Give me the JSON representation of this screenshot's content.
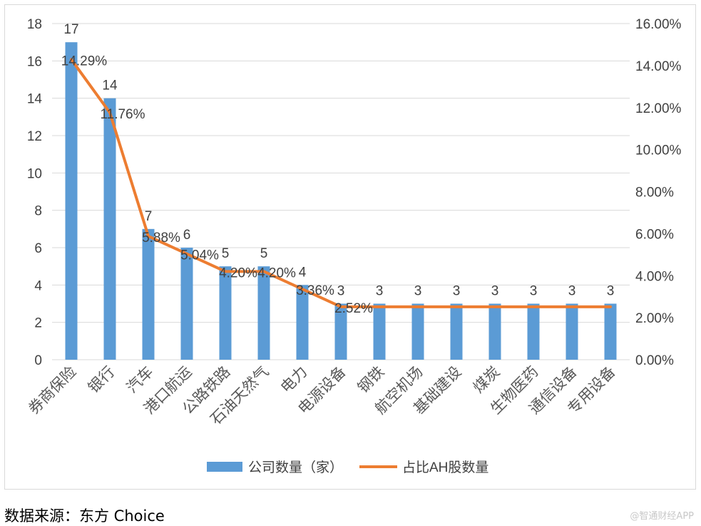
{
  "chart_data": {
    "type": "bar",
    "categories": [
      "券商保险",
      "银行",
      "汽车",
      "港口航运",
      "公路铁路",
      "石油天然气",
      "电力",
      "电源设备",
      "钢铁",
      "航空机场",
      "基础建设",
      "煤炭",
      "生物医药",
      "通信设备",
      "专用设备"
    ],
    "series": [
      {
        "name": "公司数量（家）",
        "type": "bar",
        "axis": "left",
        "color": "#5b9bd5",
        "values": [
          17,
          14,
          7,
          6,
          5,
          5,
          4,
          3,
          3,
          3,
          3,
          3,
          3,
          3,
          3
        ],
        "data_labels": [
          "17",
          "14",
          "7",
          "6",
          "5",
          "5",
          "4",
          "3",
          "3",
          "3",
          "3",
          "3",
          "3",
          "3",
          "3"
        ]
      },
      {
        "name": "占比AH股数量",
        "type": "line",
        "axis": "right",
        "color": "#ed7d31",
        "values": [
          14.29,
          11.76,
          5.88,
          5.04,
          4.2,
          4.2,
          3.36,
          2.52,
          2.52,
          2.52,
          2.52,
          2.52,
          2.52,
          2.52,
          2.52
        ],
        "data_labels": [
          "14.29%",
          "11.76%",
          "5.88%",
          "5.04%",
          "4.20%",
          "4.20%",
          "3.36%",
          "2.52%",
          "",
          "",
          "",
          "",
          "",
          "",
          ""
        ]
      }
    ],
    "y_left": {
      "ylim": [
        0,
        18
      ],
      "ticks": [
        "0",
        "2",
        "4",
        "6",
        "8",
        "10",
        "12",
        "14",
        "16",
        "18"
      ]
    },
    "y_right": {
      "ylim": [
        0,
        16
      ],
      "ticks": [
        "0.00%",
        "2.00%",
        "4.00%",
        "6.00%",
        "8.00%",
        "10.00%",
        "12.00%",
        "14.00%",
        "16.00%"
      ]
    },
    "grid": true,
    "legend": "bottom"
  },
  "legend": {
    "bar_label": "公司数量（家）",
    "line_label": "占比AH股数量"
  },
  "source_text": "数据来源：东方 Choice",
  "watermark_text": "@智通财经APP"
}
